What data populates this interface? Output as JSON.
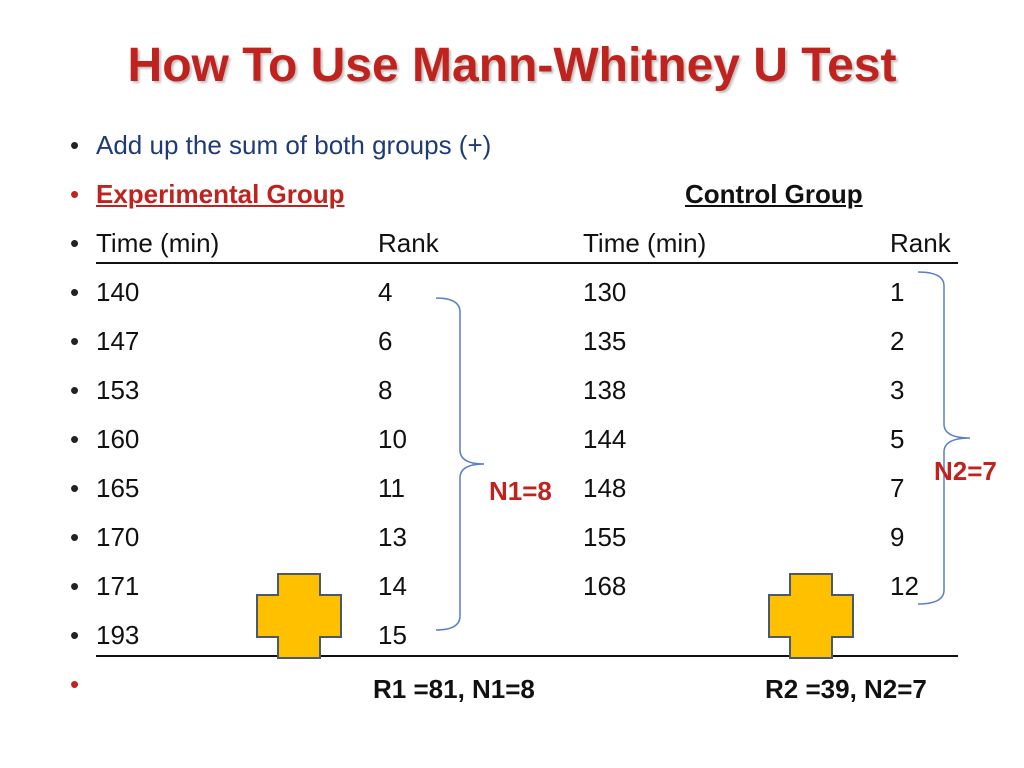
{
  "title": "How To Use Mann-Whitney U Test",
  "bullet_symbol": "•",
  "intro": "Add up the sum of both groups (+)",
  "groups": {
    "experimental": "Experimental Group",
    "control": "Control Group"
  },
  "headers": {
    "exp_time": "Time (min)",
    "exp_rank": "Rank",
    "ctrl_time": "Time (min)",
    "ctrl_rank": "Rank"
  },
  "rows": [
    {
      "exp_time": "140",
      "exp_rank": "4",
      "ctrl_time": "130",
      "ctrl_rank": "1"
    },
    {
      "exp_time": "147",
      "exp_rank": "6",
      "ctrl_time": "135",
      "ctrl_rank": "2"
    },
    {
      "exp_time": "153",
      "exp_rank": "8",
      "ctrl_time": "138",
      "ctrl_rank": "3"
    },
    {
      "exp_time": "160",
      "exp_rank": "10",
      "ctrl_time": "144",
      "ctrl_rank": "5"
    },
    {
      "exp_time": "165",
      "exp_rank": "11",
      "ctrl_time": "148",
      "ctrl_rank": "7"
    },
    {
      "exp_time": "170",
      "exp_rank": "13",
      "ctrl_time": "155",
      "ctrl_rank": "9"
    },
    {
      "exp_time": "171",
      "exp_rank": "14",
      "ctrl_time": "168",
      "ctrl_rank": "12"
    },
    {
      "exp_time": "193",
      "exp_rank": "15",
      "ctrl_time": "",
      "ctrl_rank": ""
    }
  ],
  "n1_label": "N1=8",
  "n2_label": "N2=7",
  "summary": {
    "r1": "R1 =81, N1=8",
    "r2": "R2 =39, N2=7"
  },
  "colors": {
    "title": "#c0231d",
    "accent_red": "#c0231d",
    "rank_header": "#1f3b77",
    "bracket": "#5b7fc7",
    "cross_fill": "#ffc000",
    "cross_stroke": "#4a5a6e"
  },
  "icons": {
    "plus_shape": "plus-cross-icon"
  }
}
